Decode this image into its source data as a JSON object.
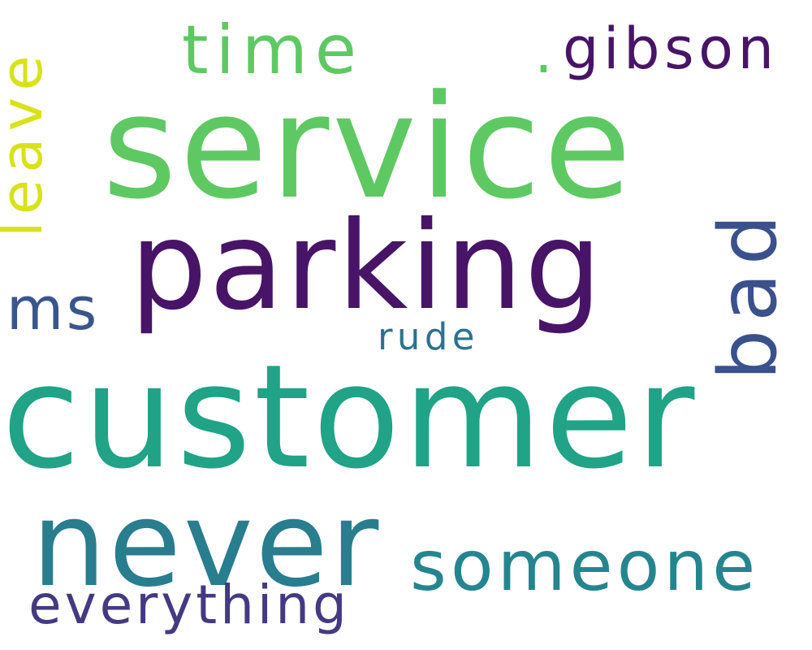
{
  "words": [
    {
      "id": "customer",
      "text": "customer",
      "color": "#20a386",
      "orientation": "horizontal"
    },
    {
      "id": "service",
      "text": "service",
      "color": "#5ec962",
      "orientation": "horizontal"
    },
    {
      "id": "parking",
      "text": "parking",
      "color": "#481467",
      "orientation": "horizontal"
    },
    {
      "id": "never",
      "text": "never",
      "color": "#287d8e",
      "orientation": "horizontal"
    },
    {
      "id": "someone",
      "text": "someone",
      "color": "#25858e",
      "orientation": "horizontal"
    },
    {
      "id": "time",
      "text": "time",
      "color": "#5ec962",
      "orientation": "horizontal"
    },
    {
      "id": "gibson",
      "text": "gibson",
      "color": "#481467",
      "orientation": "horizontal"
    },
    {
      "id": "bad",
      "text": "bad",
      "color": "#3b518b",
      "orientation": "vertical"
    },
    {
      "id": "leave",
      "text": "leave",
      "color": "#d8e219",
      "orientation": "vertical"
    },
    {
      "id": "ms",
      "text": "ms",
      "color": "#39568c",
      "orientation": "horizontal"
    },
    {
      "id": "rude",
      "text": "rude",
      "color": "#2c728e",
      "orientation": "horizontal"
    },
    {
      "id": "everything",
      "text": "everything",
      "color": "#443983",
      "orientation": "horizontal"
    },
    {
      "id": "dot",
      "text": ".",
      "color": "#5ec962",
      "orientation": "horizontal"
    }
  ]
}
